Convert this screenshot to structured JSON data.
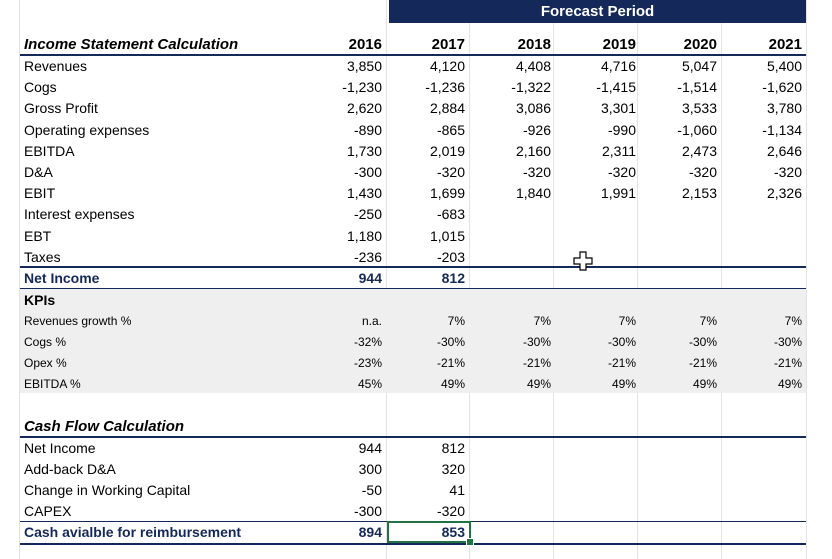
{
  "header": {
    "forecast_label": "Forecast Period"
  },
  "income": {
    "title": "Income Statement Calculation",
    "years": [
      "2016",
      "2017",
      "2018",
      "2019",
      "2020",
      "2021"
    ],
    "rows": [
      {
        "label": "Revenues",
        "values": [
          "3,850",
          "4,120",
          "4,408",
          "4,716",
          "5,047",
          "5,400"
        ]
      },
      {
        "label": "Cogs",
        "values": [
          "-1,230",
          "-1,236",
          "-1,322",
          "-1,415",
          "-1,514",
          "-1,620"
        ]
      },
      {
        "label": "Gross Profit",
        "values": [
          "2,620",
          "2,884",
          "3,086",
          "3,301",
          "3,533",
          "3,780"
        ]
      },
      {
        "label": "Operating expenses",
        "values": [
          "-890",
          "-865",
          "-926",
          "-990",
          "-1,060",
          "-1,134"
        ]
      },
      {
        "label": "EBITDA",
        "values": [
          "1,730",
          "2,019",
          "2,160",
          "2,311",
          "2,473",
          "2,646"
        ]
      },
      {
        "label": "D&A",
        "values": [
          "-300",
          "-320",
          "-320",
          "-320",
          "-320",
          "-320"
        ]
      },
      {
        "label": "EBIT",
        "values": [
          "1,430",
          "1,699",
          "1,840",
          "1,991",
          "2,153",
          "2,326"
        ]
      },
      {
        "label": "Interest expenses",
        "values": [
          "-250",
          "-683",
          "",
          "",
          "",
          ""
        ]
      },
      {
        "label": "EBT",
        "values": [
          "1,180",
          "1,015",
          "",
          "",
          "",
          ""
        ]
      },
      {
        "label": "Taxes",
        "values": [
          "-236",
          "-203",
          "",
          "",
          "",
          ""
        ]
      }
    ],
    "net_income": {
      "label": "Net Income",
      "values": [
        "944",
        "812",
        "",
        "",
        "",
        ""
      ]
    }
  },
  "kpis": {
    "title": "KPIs",
    "rows": [
      {
        "label": "Revenues growth %",
        "values": [
          "n.a.",
          "7%",
          "7%",
          "7%",
          "7%",
          "7%"
        ]
      },
      {
        "label": "Cogs %",
        "values": [
          "-32%",
          "-30%",
          "-30%",
          "-30%",
          "-30%",
          "-30%"
        ]
      },
      {
        "label": "Opex %",
        "values": [
          "-23%",
          "-21%",
          "-21%",
          "-21%",
          "-21%",
          "-21%"
        ]
      },
      {
        "label": "EBITDA %",
        "values": [
          "45%",
          "49%",
          "49%",
          "49%",
          "49%",
          "49%"
        ]
      }
    ]
  },
  "cashflow": {
    "title": "Cash Flow Calculation",
    "rows": [
      {
        "label": "Net Income",
        "values": [
          "944",
          "812"
        ]
      },
      {
        "label": "Add-back D&A",
        "values": [
          "300",
          "320"
        ]
      },
      {
        "label": "Change in Working Capital",
        "values": [
          "-50",
          "41"
        ]
      },
      {
        "label": "CAPEX",
        "values": [
          "-300",
          "-320"
        ]
      }
    ],
    "total": {
      "label": "Cash avialble for reimbursement",
      "values": [
        "894",
        "853"
      ]
    }
  },
  "colors": {
    "navy": "#14285a",
    "selection": "#217346",
    "kpi_band": "#efefef"
  },
  "cursor_icon": "crosshair-cursor-icon"
}
